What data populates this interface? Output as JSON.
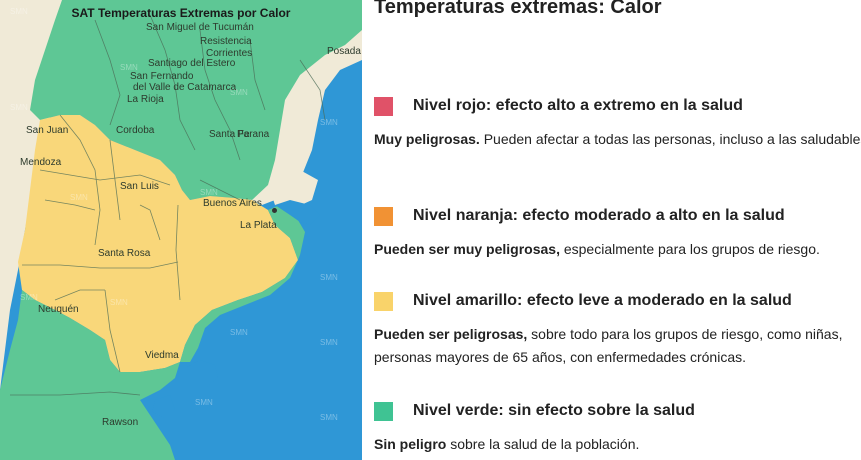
{
  "map": {
    "title": "SAT Temperaturas Extremas por Calor",
    "watermark": "SMN",
    "colors": {
      "sea": "#2f97d6",
      "neighbor": "#f0ead7",
      "green": "#5ec795",
      "yellow": "#f9d77a",
      "border": "#4a6a55"
    },
    "cities": {
      "tucuman": "San Miguel de Tucumán",
      "resistencia": "Resistencia",
      "corrientes": "Corrientes",
      "santiago": "Santiago del Estero",
      "posadas": "Posada",
      "catamarca_1": "San Fernando",
      "catamarca_2": "del Valle de Catamarca",
      "larioja": "La Rioja",
      "sanjuan": "San Juan",
      "cordoba": "Cordoba",
      "santafe": "Santa Fe",
      "parana": "Parana",
      "mendoza": "Mendoza",
      "sanluis": "San Luis",
      "buenosaires": "Buenos Aires",
      "laplata": "La Plata",
      "santarosa": "Santa Rosa",
      "neuquen": "Neuquén",
      "viedma": "Viedma",
      "rawson": "Rawson"
    }
  },
  "legend": {
    "title": "Temperaturas extremas: Calor",
    "levels": [
      {
        "color": "#e05268",
        "label": "Nivel rojo: efecto alto a extremo en la salud",
        "desc_bold": "Muy peligrosas.",
        "desc_rest": " Pueden afectar a todas las personas, incluso a las saludables."
      },
      {
        "color": "#f19234",
        "label": "Nivel naranja: efecto moderado a alto en la salud",
        "desc_bold": "Pueden ser muy peligrosas,",
        "desc_rest": " especialmente para los grupos de riesgo."
      },
      {
        "color": "#f9d36a",
        "label": "Nivel amarillo: efecto leve a moderado en la salud",
        "desc_bold": "Pueden ser peligrosas,",
        "desc_rest": " sobre todo para los grupos de riesgo, como niñas, personas mayores de 65 años, con enfermedades crónicas."
      },
      {
        "color": "#3fc393",
        "label": "Nivel verde: sin efecto sobre la salud",
        "desc_bold": "Sin peligro",
        "desc_rest": " sobre la salud de la población."
      }
    ]
  }
}
